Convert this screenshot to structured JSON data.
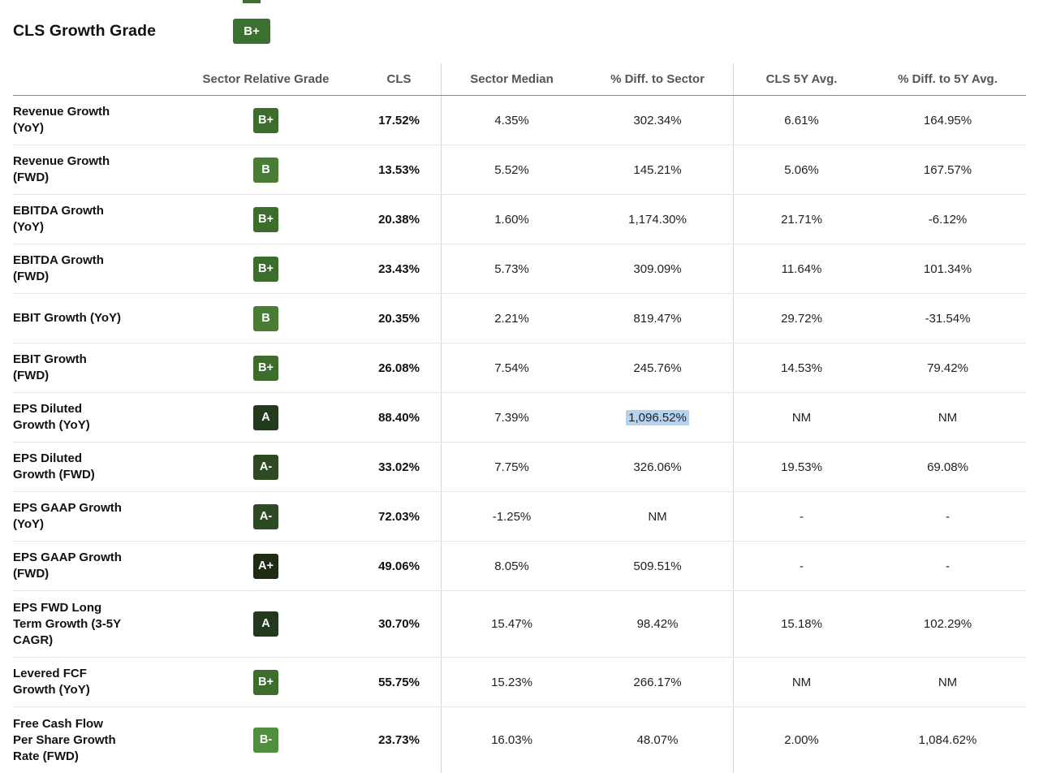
{
  "page": {
    "title": "CLS Growth Grade",
    "title_grade": "B+"
  },
  "table": {
    "columns": [
      "",
      "Sector Relative Grade",
      "CLS",
      "Sector Median",
      "% Diff. to Sector",
      "CLS 5Y Avg.",
      "% Diff. to 5Y Avg."
    ],
    "rows": [
      {
        "label": "Revenue Growth (YoY)",
        "grade": "B+",
        "cls": "17.52%",
        "sector_median": "4.35%",
        "diff_sector": "302.34%",
        "cls_5y": "6.61%",
        "diff_5y": "164.95%"
      },
      {
        "label": "Revenue Growth (FWD)",
        "grade": "B",
        "cls": "13.53%",
        "sector_median": "5.52%",
        "diff_sector": "145.21%",
        "cls_5y": "5.06%",
        "diff_5y": "167.57%"
      },
      {
        "label": "EBITDA Growth (YoY)",
        "grade": "B+",
        "cls": "20.38%",
        "sector_median": "1.60%",
        "diff_sector": "1,174.30%",
        "cls_5y": "21.71%",
        "diff_5y": "-6.12%"
      },
      {
        "label": "EBITDA Growth (FWD)",
        "grade": "B+",
        "cls": "23.43%",
        "sector_median": "5.73%",
        "diff_sector": "309.09%",
        "cls_5y": "11.64%",
        "diff_5y": "101.34%"
      },
      {
        "label": "EBIT Growth (YoY)",
        "grade": "B",
        "cls": "20.35%",
        "sector_median": "2.21%",
        "diff_sector": "819.47%",
        "cls_5y": "29.72%",
        "diff_5y": "-31.54%"
      },
      {
        "label": "EBIT Growth (FWD)",
        "grade": "B+",
        "cls": "26.08%",
        "sector_median": "7.54%",
        "diff_sector": "245.76%",
        "cls_5y": "14.53%",
        "diff_5y": "79.42%"
      },
      {
        "label": "EPS Diluted Growth (YoY)",
        "grade": "A",
        "cls": "88.40%",
        "sector_median": "7.39%",
        "diff_sector": "1,096.52%",
        "cls_5y": "NM",
        "diff_5y": "NM",
        "highlight_cell": "diff_sector"
      },
      {
        "label": "EPS Diluted Growth (FWD)",
        "grade": "A-",
        "cls": "33.02%",
        "sector_median": "7.75%",
        "diff_sector": "326.06%",
        "cls_5y": "19.53%",
        "diff_5y": "69.08%"
      },
      {
        "label": "EPS GAAP Growth (YoY)",
        "grade": "A-",
        "cls": "72.03%",
        "sector_median": "-1.25%",
        "diff_sector": "NM",
        "cls_5y": "-",
        "diff_5y": "-"
      },
      {
        "label": "EPS GAAP Growth (FWD)",
        "grade": "A+",
        "cls": "49.06%",
        "sector_median": "8.05%",
        "diff_sector": "509.51%",
        "cls_5y": "-",
        "diff_5y": "-"
      },
      {
        "label": "EPS FWD Long Term Growth (3-5Y CAGR)",
        "grade": "A",
        "cls": "30.70%",
        "sector_median": "15.47%",
        "diff_sector": "98.42%",
        "cls_5y": "15.18%",
        "diff_5y": "102.29%",
        "tall": true
      },
      {
        "label": "Levered FCF Growth (YoY)",
        "grade": "B+",
        "cls": "55.75%",
        "sector_median": "15.23%",
        "diff_sector": "266.17%",
        "cls_5y": "NM",
        "diff_5y": "NM"
      },
      {
        "label": "Free Cash Flow Per Share Growth Rate (FWD)",
        "grade": "B-",
        "cls": "23.73%",
        "sector_median": "16.03%",
        "diff_sector": "48.07%",
        "cls_5y": "2.00%",
        "diff_5y": "1,084.62%",
        "last": true
      }
    ]
  },
  "grade_colors": {
    "A+": "#1f2b15",
    "A": "#243a1d",
    "A-": "#2d4a22",
    "B+": "#3c6d2c",
    "B": "#497d36",
    "B-": "#4f8f3e"
  },
  "title_badge_color": "#3c7031",
  "highlight_color": "#b5d2f0"
}
